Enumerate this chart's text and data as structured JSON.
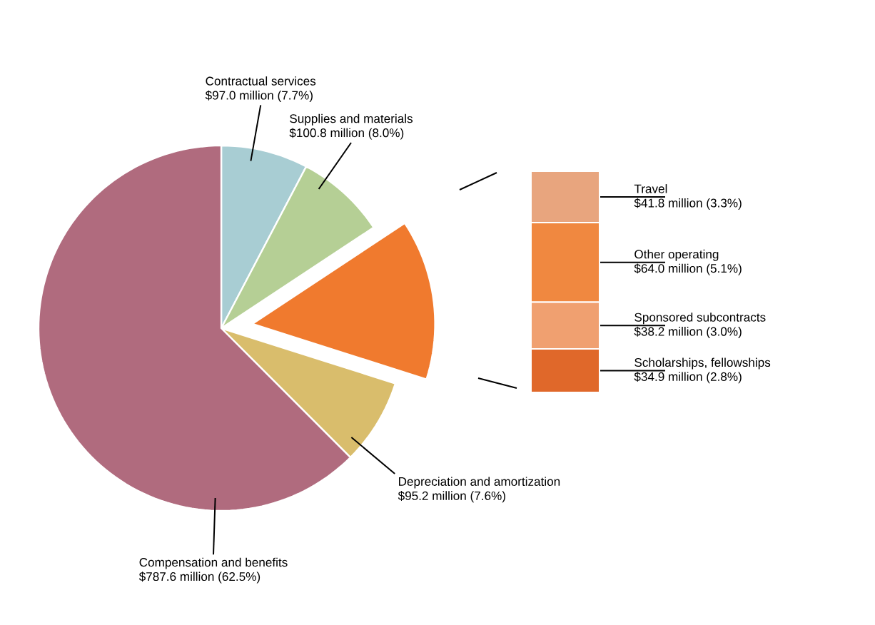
{
  "chart_data": [
    {
      "type": "pie",
      "categories": [
        "Contractual services",
        "Supplies and materials",
        null,
        "Depreciation and amortization",
        "Compensation and benefits"
      ],
      "values": [
        7.7,
        8.0,
        14.2,
        7.6,
        62.5
      ],
      "colors": [
        "#a8cdd3",
        "#b5cf95",
        "#f07a2e",
        "#d9bd6c",
        "#b06b7e"
      ],
      "value_labels": [
        "$97.0 million (7.7%)",
        "$100.8 million (8.0%)",
        null,
        "$95.2 million (7.6%)",
        "$787.6 million (62.5%)"
      ]
    },
    {
      "type": "bar",
      "stacked": true,
      "categories": [
        null
      ],
      "series": [
        {
          "name": "Scholarships, fellowships",
          "color": "#e0682a",
          "values": [
            2.8
          ],
          "value_labels": [
            "$34.9 million (2.8%)"
          ]
        },
        {
          "name": "Sponsored subcontracts",
          "color": "#f0a070",
          "values": [
            3.0
          ],
          "value_labels": [
            "$38.2 million (3.0%)"
          ]
        },
        {
          "name": "Other operating",
          "color": "#f08840",
          "values": [
            5.1
          ],
          "value_labels": [
            "$64.0 million (5.1%)"
          ]
        },
        {
          "name": "Travel",
          "color": "#e8a57e",
          "values": [
            3.3
          ],
          "value_labels": [
            "$41.8 million (3.3%)"
          ]
        }
      ]
    }
  ]
}
